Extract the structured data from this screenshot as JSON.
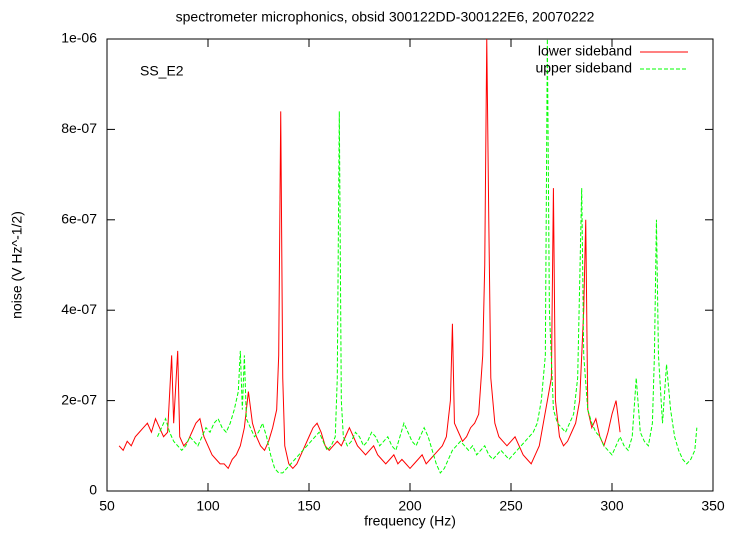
{
  "chart_data": {
    "type": "line",
    "title": "spectrometer microphonics, obsid 300122DD-300122E6, 20070222",
    "xlabel": "frequency (Hz)",
    "ylabel": "noise (V Hz^-1/2)",
    "annotation": "SS_E2",
    "xlim": [
      50,
      350
    ],
    "xticks": [
      50,
      100,
      150,
      200,
      250,
      300,
      350
    ],
    "ylim": [
      0,
      1e-06
    ],
    "yticks": [
      0,
      {
        "value": 2e-07,
        "label": "2e-07"
      },
      {
        "value": 4e-07,
        "label": "4e-07"
      },
      {
        "value": 6e-07,
        "label": "6e-07"
      },
      {
        "value": 8e-07,
        "label": "8e-07"
      },
      {
        "value": 1e-06,
        "label": "1e-06"
      }
    ],
    "legend": "upper right",
    "series": [
      {
        "name": "lower sideband",
        "color": "#ff0000",
        "dash": false,
        "x": [
          56,
          58,
          60,
          62,
          64,
          66,
          68,
          70,
          72,
          74,
          76,
          78,
          80,
          82,
          83,
          85,
          86,
          88,
          90,
          92,
          94,
          96,
          98,
          100,
          102,
          104,
          106,
          108,
          110,
          112,
          114,
          116,
          118,
          120,
          122,
          124,
          126,
          128,
          130,
          132,
          134,
          135,
          136,
          137,
          138,
          140,
          142,
          144,
          146,
          148,
          150,
          152,
          154,
          156,
          158,
          160,
          162,
          164,
          166,
          168,
          170,
          172,
          174,
          176,
          178,
          180,
          182,
          184,
          186,
          188,
          190,
          192,
          194,
          196,
          198,
          200,
          202,
          204,
          206,
          208,
          210,
          212,
          214,
          216,
          218,
          220,
          221,
          222,
          224,
          226,
          228,
          230,
          232,
          234,
          236,
          237,
          238,
          239,
          240,
          242,
          244,
          246,
          248,
          250,
          252,
          254,
          256,
          258,
          260,
          262,
          264,
          266,
          268,
          270,
          271,
          272,
          274,
          276,
          278,
          280,
          282,
          284,
          286,
          287,
          288,
          290,
          292,
          294,
          296,
          298,
          300,
          302,
          304
        ],
        "values": [
          1e-07,
          9e-08,
          1.1e-07,
          1e-07,
          1.2e-07,
          1.3e-07,
          1.4e-07,
          1.5e-07,
          1.3e-07,
          1.6e-07,
          1.4e-07,
          1.2e-07,
          1.3e-07,
          3e-07,
          1.5e-07,
          3.1e-07,
          1.2e-07,
          1e-07,
          1.1e-07,
          1.3e-07,
          1.5e-07,
          1.6e-07,
          1.2e-07,
          1e-07,
          8e-08,
          7e-08,
          6e-08,
          6e-08,
          5e-08,
          7e-08,
          8e-08,
          1e-07,
          1.4e-07,
          2.2e-07,
          1.5e-07,
          1.2e-07,
          1e-07,
          9e-08,
          1.1e-07,
          1.4e-07,
          1.8e-07,
          3e-07,
          8.4e-07,
          2.5e-07,
          1e-07,
          6e-08,
          5e-08,
          6e-08,
          8e-08,
          1e-07,
          1.2e-07,
          1.4e-07,
          1.5e-07,
          1.3e-07,
          1e-07,
          9e-08,
          1e-07,
          1.1e-07,
          1e-07,
          1.2e-07,
          1.4e-07,
          1.2e-07,
          1e-07,
          9e-08,
          8e-08,
          9e-08,
          1e-07,
          8e-08,
          7e-08,
          6e-08,
          7e-08,
          8e-08,
          6e-08,
          7e-08,
          6e-08,
          5e-08,
          6e-08,
          7e-08,
          8e-08,
          6e-08,
          7e-08,
          8e-08,
          9e-08,
          1e-07,
          1.2e-07,
          2e-07,
          3.7e-07,
          1.5e-07,
          1.3e-07,
          1.1e-07,
          1.2e-07,
          1.4e-07,
          1.5e-07,
          1.7e-07,
          3e-07,
          5e-07,
          1e-06,
          6e-07,
          2.5e-07,
          1.5e-07,
          1.2e-07,
          1.1e-07,
          1e-07,
          1.1e-07,
          1.2e-07,
          1e-07,
          8e-08,
          7e-08,
          6e-08,
          8e-08,
          1e-07,
          1.5e-07,
          2e-07,
          2.5e-07,
          6.7e-07,
          2e-07,
          1.2e-07,
          1e-07,
          1.1e-07,
          1.3e-07,
          1.5e-07,
          2e-07,
          4e-07,
          6e-07,
          1.8e-07,
          1.4e-07,
          1.6e-07,
          1.2e-07,
          1e-07,
          1.3e-07,
          1.7e-07,
          2e-07,
          1.3e-07
        ]
      },
      {
        "name": "upper sideband",
        "color": "#00ff00",
        "dash": true,
        "x": [
          75,
          77,
          79,
          81,
          83,
          85,
          87,
          89,
          91,
          93,
          95,
          97,
          99,
          101,
          103,
          105,
          107,
          109,
          111,
          113,
          115,
          116,
          117,
          118,
          119,
          121,
          123,
          125,
          127,
          129,
          131,
          133,
          135,
          137,
          139,
          141,
          143,
          145,
          147,
          149,
          151,
          153,
          155,
          157,
          159,
          161,
          163,
          164,
          165,
          166,
          167,
          169,
          171,
          173,
          175,
          177,
          179,
          181,
          183,
          185,
          187,
          189,
          191,
          193,
          195,
          197,
          199,
          201,
          203,
          205,
          207,
          209,
          211,
          213,
          215,
          217,
          219,
          221,
          223,
          225,
          227,
          229,
          231,
          233,
          235,
          237,
          239,
          241,
          243,
          245,
          247,
          249,
          251,
          253,
          255,
          257,
          259,
          261,
          263,
          265,
          267,
          268,
          269,
          271,
          273,
          275,
          277,
          279,
          281,
          283,
          285,
          286,
          288,
          290,
          292,
          294,
          296,
          298,
          300,
          302,
          304,
          306,
          308,
          310,
          312,
          314,
          316,
          318,
          320,
          321,
          322,
          323,
          325,
          327,
          329,
          331,
          333,
          335,
          337,
          339,
          341,
          342
        ],
        "values": [
          1.2e-07,
          1.4e-07,
          1.6e-07,
          1.3e-07,
          1.1e-07,
          1e-07,
          9e-08,
          1e-07,
          1.2e-07,
          1.1e-07,
          1e-07,
          1.2e-07,
          1.4e-07,
          1.3e-07,
          1.5e-07,
          1.6e-07,
          1.4e-07,
          1.3e-07,
          1.5e-07,
          1.8e-07,
          2.2e-07,
          3.1e-07,
          1.8e-07,
          3e-07,
          1.6e-07,
          1.4e-07,
          1.2e-07,
          1.3e-07,
          1.5e-07,
          1.2e-07,
          8e-08,
          5e-08,
          4e-08,
          4e-08,
          5e-08,
          6e-08,
          7e-08,
          8e-08,
          9e-08,
          1e-07,
          1.1e-07,
          1.2e-07,
          1.3e-07,
          1.1e-07,
          9e-08,
          1e-07,
          1.2e-07,
          2.5e-07,
          8.4e-07,
          2e-07,
          1.2e-07,
          1e-07,
          1.1e-07,
          1.3e-07,
          1.2e-07,
          1e-07,
          1.1e-07,
          1.3e-07,
          1.2e-07,
          1e-07,
          1.1e-07,
          1.2e-07,
          1e-07,
          9e-08,
          1.2e-07,
          1.5e-07,
          1.3e-07,
          1.1e-07,
          1e-07,
          1.2e-07,
          1.4e-07,
          1.2e-07,
          9e-08,
          6e-08,
          4e-08,
          5e-08,
          7e-08,
          9e-08,
          1e-07,
          1.1e-07,
          1e-07,
          9e-08,
          1e-07,
          8e-08,
          9e-08,
          1e-07,
          8e-08,
          7e-08,
          8e-08,
          9e-08,
          8e-08,
          7e-08,
          8e-08,
          9e-08,
          1e-07,
          1.1e-07,
          1.2e-07,
          1.3e-07,
          1.5e-07,
          2e-07,
          3e-07,
          1e-06,
          4e-07,
          1.8e-07,
          1.5e-07,
          1.4e-07,
          1.3e-07,
          1.5e-07,
          1.7e-07,
          2.5e-07,
          6.7e-07,
          3e-07,
          1.8e-07,
          1.5e-07,
          1.3e-07,
          1.2e-07,
          1e-07,
          9e-08,
          8e-08,
          1e-07,
          1.2e-07,
          1e-07,
          9e-08,
          1.2e-07,
          2.5e-07,
          1.3e-07,
          1.1e-07,
          1e-07,
          1.5e-07,
          3e-07,
          6e-07,
          3e-07,
          1.5e-07,
          2.8e-07,
          1.8e-07,
          1.2e-07,
          9e-08,
          7e-08,
          6e-08,
          7e-08,
          9e-08,
          1.4e-07
        ]
      }
    ]
  }
}
